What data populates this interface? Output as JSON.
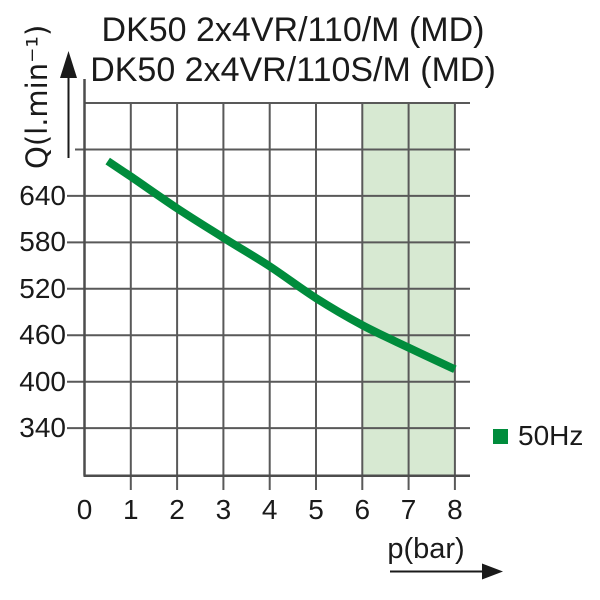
{
  "title": {
    "line1": "DK50 2x4VR/110/M (MD)",
    "line2": "DK50 2x4VR/110S/M (MD)"
  },
  "y_axis": {
    "label": "Q(l.min⁻¹)"
  },
  "x_axis": {
    "label": "p(bar)"
  },
  "legend": {
    "items": [
      {
        "label": "50Hz",
        "color": "#008c3c"
      }
    ]
  },
  "colors": {
    "curve": "#008c3c",
    "highlight_band": "#d7e9d2",
    "grid": "#595959",
    "axis": "#4d4d4d",
    "text": "#1a1a1a"
  },
  "chart_data": {
    "type": "line",
    "title": "DK50 2x4VR/110/M (MD) / DK50 2x4VR/110S/M (MD)",
    "xlabel": "p(bar)",
    "ylabel": "Q(l.min⁻¹)",
    "xlim": [
      0,
      8
    ],
    "ylim": [
      280,
      760
    ],
    "x_ticks": [
      0,
      1,
      2,
      3,
      4,
      5,
      6,
      7,
      8
    ],
    "y_ticks": [
      640,
      580,
      520,
      460,
      400,
      340
    ],
    "y_gridlines": [
      760,
      700,
      640,
      580,
      520,
      460,
      400,
      340
    ],
    "grid": true,
    "legend_position": "right",
    "series": [
      {
        "name": "50Hz",
        "color": "#008c3c",
        "x": [
          0.5,
          1,
          2,
          3,
          4,
          5,
          6,
          7,
          8
        ],
        "y": [
          685,
          665,
          624,
          586,
          549,
          508,
          473,
          444,
          416
        ]
      }
    ],
    "highlight_band": {
      "x_from": 6,
      "x_to": 8,
      "color": "#d7e9d2"
    }
  }
}
